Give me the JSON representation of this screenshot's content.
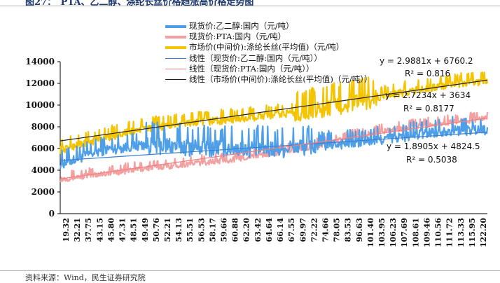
{
  "header": {
    "title": "图27：　PTA、乙二醇、涤纶长丝价格趋涨高价格走势图"
  },
  "footer": {
    "source": "资料来源：Wind，民生证券研究院"
  },
  "chart_data": {
    "type": "line",
    "title": "",
    "xlabel": "",
    "ylabel": "",
    "ylim": [
      0,
      14000
    ],
    "yticks": [
      0,
      2000,
      4000,
      6000,
      8000,
      10000,
      12000,
      14000
    ],
    "xticks": [
      "19.32",
      "32.21",
      "37.75",
      "43.15",
      "45.80",
      "47.31",
      "48.51",
      "49.49",
      "50.76",
      "52.21",
      "54.13",
      "55.51",
      "56.53",
      "58.17",
      "59.66",
      "60.88",
      "62.20",
      "63.42",
      "64.64",
      "66.14",
      "67.55",
      "69.97",
      "72.22",
      "74.66",
      "78.05",
      "83.53",
      "96.63",
      "101.40",
      "103.95",
      "106.23",
      "107.69",
      "108.61",
      "109.46",
      "110.56",
      "111.72",
      "113.33",
      "115.95",
      "122.20"
    ],
    "grid": false,
    "legend_position": "top-center",
    "series": [
      {
        "name": "现货价:乙二醇:国内（元/吨）",
        "color": "#4f9fe8",
        "x": [
          0,
          10,
          20,
          30,
          40,
          50,
          60,
          70,
          80,
          90,
          100
        ],
        "values": [
          4600,
          5900,
          6400,
          6200,
          6100,
          6000,
          6300,
          6600,
          7100,
          7700,
          7800
        ]
      },
      {
        "name": "现货价:PTA:国内（元/吨）",
        "color": "#f4a0a0",
        "x": [
          0,
          10,
          20,
          30,
          40,
          50,
          60,
          70,
          80,
          90,
          100
        ],
        "values": [
          3200,
          3700,
          4200,
          4600,
          5000,
          5600,
          6300,
          7200,
          7900,
          8400,
          8800
        ]
      },
      {
        "name": "市场价(中间价):涤纶长丝(平均值)（元/吨）",
        "color": "#f5c400",
        "x": [
          0,
          10,
          20,
          30,
          40,
          50,
          60,
          70,
          80,
          90,
          100
        ],
        "values": [
          5900,
          7000,
          7900,
          8400,
          8700,
          9100,
          9600,
          10400,
          11200,
          11800,
          12300
        ]
      }
    ],
    "trendlines": [
      {
        "name": "线性（现货价:乙二醇:国内（元/吨））",
        "color": "#3b7fd0",
        "equation": "y = 1.8905x + 4824.5",
        "r2": "R² = 0.5038"
      },
      {
        "name": "线性（现货价:PTA:国内（元/吨））",
        "color": "#f08080",
        "equation": "y = 2.7234x + 3634",
        "r2": "R² = 0.8177"
      },
      {
        "name": "线性（市场价(中间价):涤纶长丝(平均值)（元/吨））",
        "color": "#222222",
        "equation": "y = 2.9881x + 6760.2",
        "r2": "R² = 0.816"
      }
    ]
  }
}
